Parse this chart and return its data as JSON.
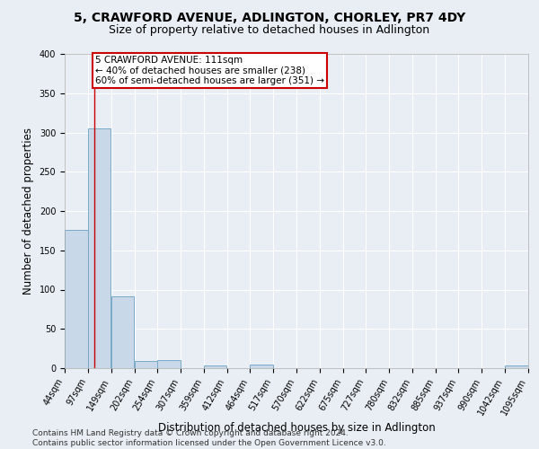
{
  "title": "5, CRAWFORD AVENUE, ADLINGTON, CHORLEY, PR7 4DY",
  "subtitle": "Size of property relative to detached houses in Adlington",
  "xlabel": "Distribution of detached houses by size in Adlington",
  "ylabel": "Number of detached properties",
  "bin_edges": [
    44,
    97,
    149,
    202,
    254,
    307,
    359,
    412,
    464,
    517,
    570,
    622,
    675,
    727,
    780,
    832,
    885,
    937,
    990,
    1042,
    1095
  ],
  "bar_heights": [
    176,
    305,
    92,
    9,
    10,
    0,
    3,
    0,
    5,
    0,
    0,
    0,
    0,
    0,
    0,
    0,
    0,
    0,
    0,
    4
  ],
  "bar_color": "#c8d8e8",
  "bar_edge_color": "#7aaac8",
  "property_line_x": 111,
  "property_line_color": "#cc0000",
  "annotation_line1": "5 CRAWFORD AVENUE: 111sqm",
  "annotation_line2": "← 40% of detached houses are smaller (238)",
  "annotation_line3": "60% of semi-detached houses are larger (351) →",
  "annotation_box_color": "#cc0000",
  "ylim": [
    0,
    400
  ],
  "yticks": [
    0,
    50,
    100,
    150,
    200,
    250,
    300,
    350,
    400
  ],
  "footer_text": "Contains HM Land Registry data © Crown copyright and database right 2024.\nContains public sector information licensed under the Open Government Licence v3.0.",
  "bg_color": "#e8eef4",
  "plot_bg_color": "#e8eef4",
  "grid_color": "#ffffff",
  "title_fontsize": 10,
  "subtitle_fontsize": 9,
  "label_fontsize": 8.5,
  "tick_fontsize": 7,
  "footer_fontsize": 6.5,
  "annotation_fontsize": 7.5
}
